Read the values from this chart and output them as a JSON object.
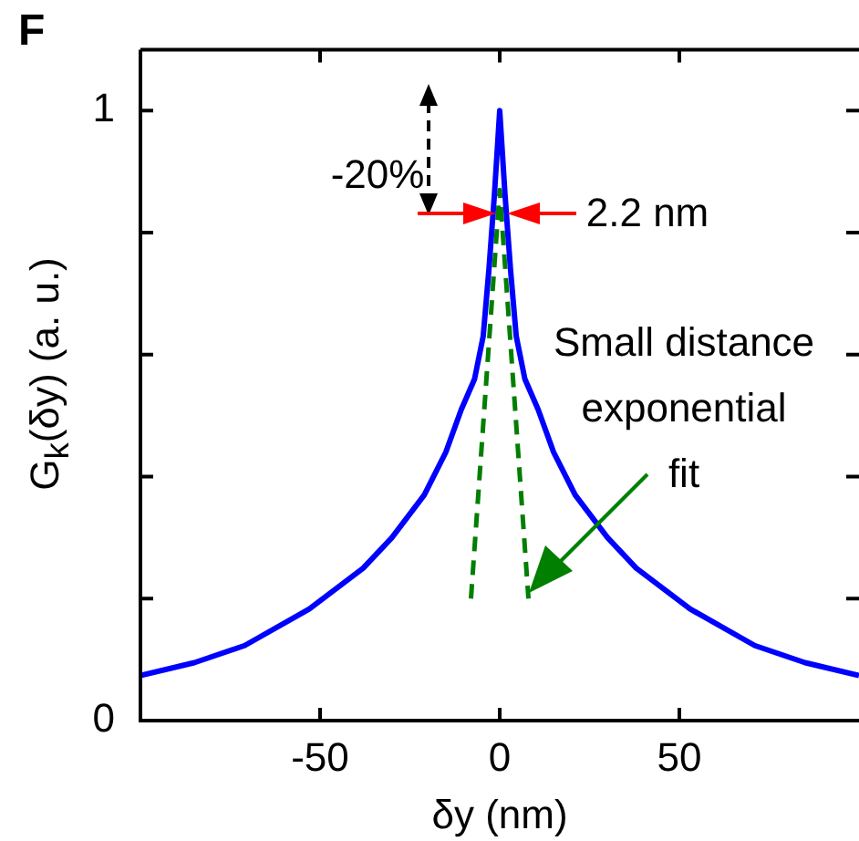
{
  "chart_data": {
    "type": "line",
    "title": "F",
    "xlabel": "δy (nm)",
    "ylabel": "G$_{k}$(δy) (a. u.)",
    "xlim": [
      -100,
      100
    ],
    "xticks": [
      -50,
      0,
      50
    ],
    "ylim": [
      0,
      1.1
    ],
    "yticks": [
      0,
      {
        "value": 0.2,
        "label": null
      },
      {
        "value": 0.4,
        "label": null
      },
      {
        "value": 0.6,
        "label": null
      },
      {
        "value": 0.8,
        "label": null
      },
      1
    ],
    "series": [
      {
        "color": "#0000ff",
        "x": [
          -100,
          -85,
          -71,
          -53,
          -38,
          -30,
          -21,
          -15,
          -10.7,
          -7,
          -4.6,
          -3,
          -1.5,
          0,
          1.5,
          3,
          4.6,
          7,
          10.7,
          15,
          21,
          30,
          38,
          53,
          71,
          85,
          100
        ],
        "values": [
          0.074,
          0.095,
          0.123,
          0.183,
          0.25,
          0.3,
          0.37,
          0.44,
          0.51,
          0.56,
          0.63,
          0.74,
          0.86,
          1,
          0.86,
          0.74,
          0.63,
          0.56,
          0.51,
          0.44,
          0.37,
          0.3,
          0.25,
          0.183,
          0.123,
          0.095,
          0.074
        ]
      },
      {
        "color": "#007f00",
        "line_style": "dashed",
        "x": [
          -8,
          0,
          8
        ],
        "values": [
          0.2,
          0.87,
          0.2
        ]
      }
    ],
    "annotations": [
      "-20%",
      "2.2 nm",
      "Small distance\nexponential\nfit"
    ]
  }
}
